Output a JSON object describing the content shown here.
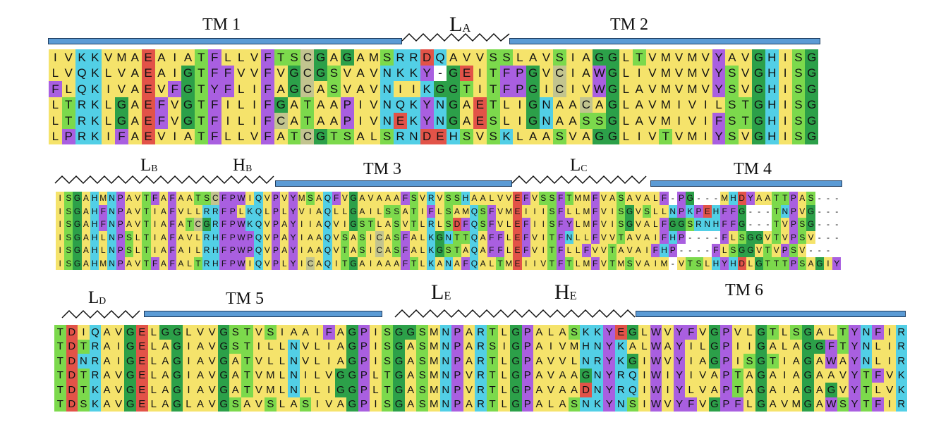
{
  "colors": {
    "hydrophobic": "#f5e36b",
    "glycine": "#2ca049",
    "polar_st": "#7cd94c",
    "charged_basic": "#52cfe6",
    "charged_acid": "#e25348",
    "proline_aromatic": "#a95fe0",
    "cysteine": "#c2c48f",
    "gap": "#ffffff",
    "helix_bar": "#5b9bd5",
    "helix_bar_border": "#1f3c5e",
    "loop_line": "#111111"
  },
  "segments": {
    "tm1": "TM 1",
    "la": {
      "main": "L",
      "sub": "A"
    },
    "tm2": "TM 2",
    "lb": {
      "main": "L",
      "sub": "B"
    },
    "hb": {
      "main": "H",
      "sub": "B"
    },
    "tm3": "TM 3",
    "lc": {
      "main": "L",
      "sub": "C"
    },
    "tm4": "TM 4",
    "ld": {
      "main": "L",
      "sub": "D"
    },
    "tm5": "TM 5",
    "le": {
      "main": "L",
      "sub": "E"
    },
    "he": {
      "main": "H",
      "sub": "E"
    },
    "tm6": "TM 6"
  },
  "alignment": {
    "block1": [
      "IVKKVMAEAIATFLLVFTSCGAGAMSRRDQAVVSSLAVSIAGGLTVMVMVYAVGHISG",
      "LVQKLVAEAIGTFFVVFVGCGSVAVNKKY-GEITFPGVCIAWGLIVMVMVYSVGHISG",
      "FLQKIVAEVFGTYFLIFAGCASVAVNIIKGGTITFPGICIVWGLAVMVMVYSVGHISG",
      "LTRKLGAEFVGTFILIFGATAAPIVNQKYNGAETLIGNAACAGLAVMIVILSTGHISG",
      "LTRKLGAEFVGTFILIFCATAAPIVNEKYNGAESLIGNAASSGLAVMIVIFSTGHISG",
      "LPRKIFAEVIATFLLVFATCGTSALSRNDEHSVSKLAASVAGGLIVTVMIYSVGHISG"
    ],
    "block2": [
      "ISGAHMNPAVTFAFAATSCFPWIQVPVYMSAQFVGAVAAAFSVRVSSHAALVVEFVSSFTMMFVASAVALF-PG---MHDYAATTPAS---",
      "ISGAHFNPAVTIAFVLLRRFPLKQLPLYVIAQLLGAILSSATIFLSAMQSFVMEIIISFLLMFVISGVSLLNPKPEHFFG---TNPVG---",
      "ISGAHFNPAVTIAFATCGRFPWKQVPAYIIAQVIGSTLASVTLRLSDFQSFVLEFIISFYLMFVISGVALFGGSRNHFFG---TVPSG---",
      "ISGAHLNPSLTIAFAVLRHFPWPQVPAYIAAQVSASICASFALKGNTTQAFFLEFVITFNLLFVVTAVAIFHP----FLSGGVTVPSV---",
      "ISGAHLNPSLTIAFAILRHFPWPQVPAYIAAQVTASICASFALKGSTAQAFFLEFVITFLLFVVTAVAIFHP----FLSGGVTVPSV---",
      "ISGAHMNPAVTFAFALTRHFPWIQVPLYICAQITGAIAAAFTLKANAFQALTMEIIVTFTLMFVTMSVAIM-VTSLHYHDLGTTTPSAGIY"
    ],
    "block3": [
      "TDIQAVGELGGLVVGSTVSIAAIFAGPISGGSMNPARTLGPALASKKYEGLWVYFVGPVLGTLSGALTYNFIR",
      "TDTRAIGELAGIAVGSTILLNVLIAGPISGASMNPARSIGPAIVMHNYKALWAYILGPIIGALAGGFTYNLIR",
      "TDNRAIGELAGIAVGATVLLNVLIAGPISGASMNPARTLGPAVVLNRYKGIWVYIAGPISGTIAGAWAYNLIR",
      "TDTRAVGELAGIAVGATVMLNILVGGPLTGASMNPVRTLGPAVAAGNYRQIWIYIVAPTAGAIAGAAVYTFVK",
      "TDTKAVGELAGIAVGATVMLNILIGGPLTGASMNPVRTLGPAVAADNYRQIWIYLVAPTAGAIAGAGVYTLVK",
      "TDSKAVGELAGLAVGSAVSLASIVAGPISGASMNPARTLGPALASNKYNSIWVYFVGPFLGAVMGAWSYTFIR"
    ]
  }
}
